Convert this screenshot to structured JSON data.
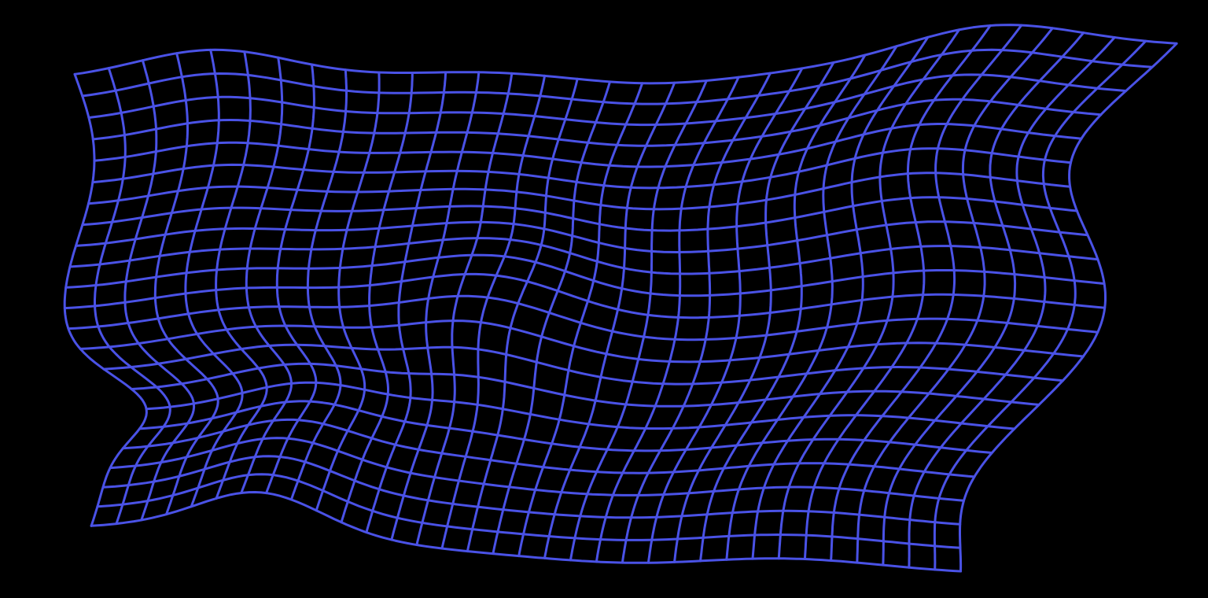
{
  "scene": {
    "subject": "warped-mesh",
    "background_color": "#000000",
    "line_color": "#4a52e6",
    "grid": {
      "columns": 34,
      "rows": 22
    },
    "distortion": {
      "kind": "wavy-swirl",
      "focus": "center-left"
    }
  }
}
